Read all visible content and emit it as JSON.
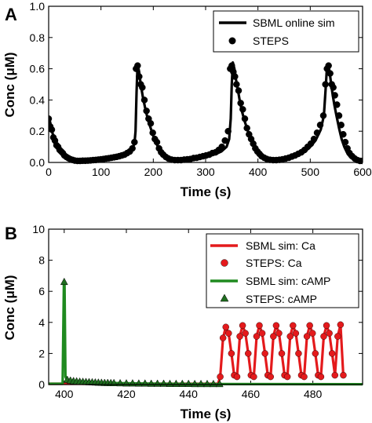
{
  "chart_data": [
    {
      "panel_label": "A",
      "type": "line",
      "title": "",
      "xlabel": "Time (s)",
      "ylabel": "Conc (μM)",
      "xlim": [
        0,
        600
      ],
      "ylim": [
        0.0,
        1.0
      ],
      "xticks": [
        0,
        100,
        200,
        300,
        400,
        500,
        600
      ],
      "yticks": [
        0.0,
        0.2,
        0.4,
        0.6,
        0.8,
        1.0
      ],
      "xtick_labels": [
        "0",
        "100",
        "200",
        "300",
        "400",
        "500",
        "600"
      ],
      "ytick_labels": [
        "0.0",
        "0.2",
        "0.4",
        "0.6",
        "0.8",
        "1.0"
      ],
      "grid": false,
      "legend_position": "top-right",
      "series": [
        {
          "name": "SBML online sim",
          "style": "line",
          "color": "#000000",
          "x": [
            0,
            2,
            4,
            6,
            8,
            12,
            16,
            20,
            25,
            30,
            35,
            40,
            45,
            50,
            60,
            70,
            80,
            90,
            100,
            110,
            120,
            130,
            140,
            150,
            160,
            164,
            166,
            168,
            170,
            173,
            176,
            180,
            185,
            190,
            195,
            200,
            205,
            210,
            215,
            220,
            230,
            240,
            250,
            260,
            270,
            280,
            290,
            300,
            310,
            320,
            330,
            340,
            345,
            348,
            350,
            352,
            355,
            358,
            362,
            366,
            370,
            375,
            380,
            385,
            390,
            395,
            400,
            410,
            420,
            430,
            440,
            450,
            460,
            470,
            480,
            490,
            500,
            510,
            520,
            526,
            530,
            532,
            534,
            537,
            540,
            543,
            546,
            550,
            555,
            560,
            565,
            570,
            575,
            580,
            585,
            590,
            595,
            600
          ],
          "y": [
            0.29,
            0.27,
            0.24,
            0.21,
            0.18,
            0.14,
            0.11,
            0.08,
            0.06,
            0.045,
            0.03,
            0.022,
            0.016,
            0.012,
            0.01,
            0.011,
            0.013,
            0.016,
            0.02,
            0.025,
            0.03,
            0.036,
            0.045,
            0.06,
            0.09,
            0.12,
            0.2,
            0.45,
            0.63,
            0.58,
            0.5,
            0.42,
            0.34,
            0.27,
            0.22,
            0.17,
            0.13,
            0.09,
            0.06,
            0.04,
            0.025,
            0.018,
            0.015,
            0.015,
            0.018,
            0.022,
            0.028,
            0.035,
            0.045,
            0.055,
            0.07,
            0.1,
            0.15,
            0.28,
            0.5,
            0.64,
            0.6,
            0.53,
            0.46,
            0.38,
            0.32,
            0.26,
            0.21,
            0.16,
            0.12,
            0.09,
            0.065,
            0.035,
            0.02,
            0.015,
            0.015,
            0.018,
            0.025,
            0.035,
            0.05,
            0.07,
            0.1,
            0.14,
            0.21,
            0.3,
            0.5,
            0.62,
            0.63,
            0.58,
            0.5,
            0.43,
            0.37,
            0.3,
            0.22,
            0.15,
            0.1,
            0.065,
            0.04,
            0.025,
            0.018,
            0.013,
            0.01,
            0.01
          ]
        },
        {
          "name": "STEPS",
          "style": "markers",
          "color": "#000000",
          "x": [
            0,
            3,
            6,
            9,
            12,
            15,
            18,
            21,
            24,
            27,
            30,
            34,
            38,
            42,
            46,
            50,
            55,
            60,
            65,
            70,
            75,
            80,
            85,
            90,
            95,
            100,
            105,
            110,
            115,
            120,
            125,
            130,
            135,
            140,
            145,
            150,
            155,
            160,
            164,
            167,
            170,
            173,
            176,
            179,
            183,
            187,
            191,
            195,
            199,
            203,
            207,
            211,
            215,
            219,
            224,
            229,
            235,
            241,
            247,
            253,
            259,
            265,
            271,
            277,
            283,
            289,
            295,
            301,
            307,
            313,
            319,
            325,
            331,
            337,
            343,
            347,
            350,
            353,
            356,
            359,
            363,
            367,
            371,
            375,
            379,
            383,
            387,
            391,
            395,
            399,
            403,
            407,
            412,
            417,
            423,
            429,
            435,
            441,
            447,
            453,
            459,
            465,
            471,
            477,
            483,
            489,
            495,
            501,
            507,
            513,
            519,
            525,
            529,
            532,
            535,
            538,
            541,
            544,
            547,
            551,
            555,
            559,
            563,
            567,
            571,
            575,
            580,
            585,
            590,
            595,
            600
          ],
          "y": [
            0.28,
            0.23,
            0.21,
            0.16,
            0.14,
            0.11,
            0.1,
            0.08,
            0.07,
            0.06,
            0.045,
            0.035,
            0.027,
            0.02,
            0.016,
            0.012,
            0.01,
            0.01,
            0.011,
            0.011,
            0.012,
            0.013,
            0.015,
            0.016,
            0.018,
            0.02,
            0.022,
            0.025,
            0.027,
            0.03,
            0.033,
            0.036,
            0.04,
            0.045,
            0.05,
            0.06,
            0.07,
            0.09,
            0.13,
            0.6,
            0.62,
            0.55,
            0.5,
            0.48,
            0.4,
            0.33,
            0.28,
            0.25,
            0.19,
            0.15,
            0.13,
            0.09,
            0.065,
            0.05,
            0.035,
            0.025,
            0.018,
            0.015,
            0.015,
            0.015,
            0.018,
            0.02,
            0.022,
            0.028,
            0.03,
            0.035,
            0.04,
            0.045,
            0.05,
            0.06,
            0.065,
            0.08,
            0.1,
            0.14,
            0.2,
            0.6,
            0.62,
            0.58,
            0.55,
            0.5,
            0.46,
            0.38,
            0.34,
            0.28,
            0.22,
            0.18,
            0.15,
            0.12,
            0.09,
            0.07,
            0.055,
            0.04,
            0.03,
            0.022,
            0.017,
            0.015,
            0.015,
            0.017,
            0.02,
            0.025,
            0.03,
            0.038,
            0.045,
            0.055,
            0.065,
            0.08,
            0.1,
            0.12,
            0.15,
            0.19,
            0.24,
            0.3,
            0.5,
            0.6,
            0.62,
            0.57,
            0.5,
            0.48,
            0.43,
            0.37,
            0.3,
            0.24,
            0.18,
            0.13,
            0.09,
            0.06,
            0.04,
            0.025,
            0.015,
            0.01,
            0.01
          ]
        }
      ]
    },
    {
      "panel_label": "B",
      "type": "line",
      "title": "",
      "xlabel": "Time (s)",
      "ylabel": "Conc (μM)",
      "xlim": [
        395,
        496
      ],
      "ylim": [
        0,
        10
      ],
      "xticks": [
        400,
        420,
        440,
        460,
        480
      ],
      "yticks": [
        0,
        2,
        4,
        6,
        8,
        10
      ],
      "xtick_labels": [
        "400",
        "420",
        "440",
        "460",
        "480"
      ],
      "ytick_labels": [
        "0",
        "2",
        "4",
        "6",
        "8",
        "10"
      ],
      "grid": false,
      "legend_position": "top-right",
      "series": [
        {
          "name": "SBML sim: Ca",
          "style": "line",
          "color": "#e41a1c",
          "x": [
            395,
            449.5,
            450.2,
            451.1,
            452.0,
            452.9,
            453.8,
            454.7,
            455.6,
            456.5,
            457.4,
            458.3,
            459.2,
            460.1,
            461.0,
            461.9,
            462.8,
            463.7,
            464.6,
            465.5,
            466.4,
            467.3,
            468.2,
            469.1,
            470.0,
            470.9,
            471.8,
            472.7,
            473.6,
            474.5,
            475.4,
            476.3,
            477.2,
            478.1,
            479.0,
            479.9,
            480.8,
            481.7,
            482.6,
            483.5,
            484.4,
            485.3,
            486.2,
            487.1,
            488.0,
            488.9,
            489.8
          ],
          "y": [
            0.05,
            0.05,
            0.5,
            3.0,
            3.7,
            3.3,
            2.0,
            0.6,
            0.5,
            3.1,
            3.8,
            3.3,
            2.0,
            0.6,
            0.5,
            3.1,
            3.8,
            3.3,
            2.0,
            0.6,
            0.5,
            3.1,
            3.8,
            3.3,
            2.0,
            0.6,
            0.5,
            3.1,
            3.8,
            3.3,
            2.0,
            0.6,
            0.5,
            3.1,
            3.8,
            3.3,
            2.0,
            0.6,
            0.5,
            3.1,
            3.8,
            3.3,
            2.0,
            0.6,
            3.1,
            3.85,
            0.6
          ]
        },
        {
          "name": "STEPS: Ca",
          "style": "markers",
          "color": "#e41a1c",
          "x": [
            450.2,
            451.1,
            452.0,
            452.9,
            453.8,
            454.7,
            455.6,
            456.5,
            457.4,
            458.3,
            459.2,
            460.1,
            461.0,
            461.9,
            462.8,
            463.7,
            464.6,
            465.5,
            466.4,
            467.3,
            468.2,
            469.1,
            470.0,
            470.9,
            471.8,
            472.7,
            473.6,
            474.5,
            475.4,
            476.3,
            477.2,
            478.1,
            479.0,
            479.9,
            480.8,
            481.7,
            482.6,
            483.5,
            484.4,
            485.3,
            486.2,
            487.1,
            488.0,
            488.9,
            489.8
          ],
          "y": [
            0.5,
            3.0,
            3.7,
            3.3,
            2.0,
            0.6,
            0.5,
            3.1,
            3.8,
            3.3,
            2.0,
            0.6,
            0.5,
            3.1,
            3.8,
            3.3,
            2.0,
            0.6,
            0.5,
            3.1,
            3.8,
            3.3,
            2.0,
            0.6,
            0.5,
            3.1,
            3.8,
            3.3,
            2.0,
            0.6,
            0.5,
            3.1,
            3.8,
            3.3,
            2.0,
            0.6,
            0.5,
            3.1,
            3.8,
            3.3,
            2.0,
            0.6,
            3.1,
            3.85,
            0.6
          ]
        },
        {
          "name": "SBML sim: cAMP",
          "style": "line",
          "color": "#1f8a1f",
          "x": [
            395,
            399.5,
            399.9,
            400.1,
            400.4,
            401,
            402,
            404,
            406,
            410,
            420,
            430,
            440,
            450,
            496
          ],
          "y": [
            0.05,
            0.05,
            6.5,
            6.6,
            0.5,
            0.25,
            0.2,
            0.18,
            0.16,
            0.12,
            0.08,
            0.05,
            0.04,
            0.03,
            0.02
          ]
        },
        {
          "name": "STEPS: cAMP",
          "style": "triangles",
          "color": "#1f6e1f",
          "x": [
            400.0,
            401,
            402,
            403,
            404,
            405,
            406,
            407,
            408,
            409,
            410,
            411,
            412,
            413,
            414,
            415,
            416,
            418,
            420,
            422,
            424,
            426,
            428,
            430,
            432,
            434,
            436,
            438,
            440,
            442,
            444,
            446,
            448,
            450
          ],
          "y": [
            6.6,
            0.3,
            0.25,
            0.22,
            0.2,
            0.18,
            0.17,
            0.16,
            0.15,
            0.14,
            0.13,
            0.12,
            0.11,
            0.1,
            0.1,
            0.09,
            0.09,
            0.08,
            0.07,
            0.07,
            0.06,
            0.06,
            0.05,
            0.05,
            0.05,
            0.04,
            0.04,
            0.04,
            0.04,
            0.03,
            0.03,
            0.03,
            0.03,
            0.03
          ]
        }
      ]
    }
  ]
}
